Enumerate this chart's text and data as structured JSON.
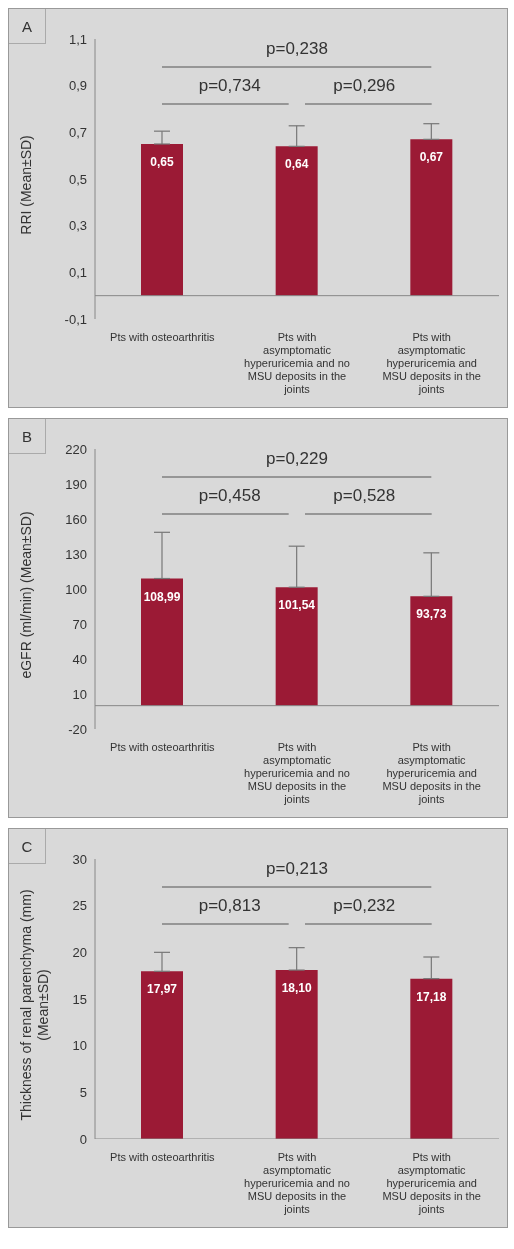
{
  "chart_data": [
    {
      "type": "bar",
      "title": "A",
      "ylabel": "RRI (Mean±SD)",
      "categories": [
        "Pts with osteoarthritis",
        "Pts with asymptomatic hyperuricemia and no MSU deposits in the joints",
        "Pts with asymptomatic hyperuricemia and MSU deposits in the joints"
      ],
      "values": [
        0.65,
        0.64,
        0.67
      ],
      "errors": [
        [
          0.65,
          0.705
        ],
        [
          0.64,
          0.728
        ],
        [
          0.67,
          0.737
        ]
      ],
      "value_labels": [
        "0,65",
        "0,64",
        "0,67"
      ],
      "color": "#9b1a35",
      "ylim": [
        -0.1,
        1.1
      ],
      "yticks": [
        {
          "value": -0.1,
          "label": "-0,1"
        },
        {
          "value": 0.1,
          "label": "0,1"
        },
        {
          "value": 0.3,
          "label": "0,3"
        },
        {
          "value": 0.5,
          "label": "0,5"
        },
        {
          "value": 0.7,
          "label": "0,7"
        },
        {
          "value": 0.9,
          "label": "0,9"
        },
        {
          "value": 1.1,
          "label": "1,1"
        }
      ],
      "grid": false,
      "annotations": [
        "p=0,238",
        "p=0,734",
        "p=0,296"
      ]
    },
    {
      "type": "bar",
      "title": "B",
      "ylabel": "eGFR (ml/min) (Mean±SD)",
      "categories": [
        "Pts with osteoarthritis",
        "Pts with asymptomatic hyperuricemia and no MSU deposits in the joints",
        "Pts with asymptomatic hyperuricemia and MSU deposits in the joints"
      ],
      "values": [
        108.99,
        101.54,
        93.73
      ],
      "errors": [
        [
          108.99,
          148.6
        ],
        [
          101.54,
          136.7
        ],
        [
          93.73,
          131
        ]
      ],
      "value_labels": [
        "108,99",
        "101,54",
        "93,73"
      ],
      "color": "#9b1a35",
      "ylim": [
        -20,
        220
      ],
      "yticks": [
        -20,
        10,
        40,
        70,
        100,
        130,
        160,
        190,
        220
      ],
      "grid": false,
      "annotations": [
        "p=0,229",
        "p=0,458",
        "p=0,528"
      ]
    },
    {
      "type": "bar",
      "title": "C",
      "ylabel": "Thickness of renal parenchyma (mm) (Mean±SD)",
      "categories": [
        "Pts with osteoarthritis",
        "Pts with asymptomatic hyperuricemia and no MSU deposits in the joints",
        "Pts with asymptomatic hyperuricemia and MSU deposits in the joints"
      ],
      "values": [
        17.97,
        18.1,
        17.18
      ],
      "errors": [
        [
          17.97,
          20
        ],
        [
          18.1,
          20.5
        ],
        [
          17.18,
          19.5
        ]
      ],
      "value_labels": [
        "17,97",
        "18,10",
        "17,18"
      ],
      "color": "#9b1a35",
      "ylim": [
        0,
        30
      ],
      "yticks": [
        0,
        5,
        10,
        15,
        20,
        25,
        30
      ],
      "grid": false,
      "annotations": [
        "p=0,213",
        "p=0,813",
        "p=0,232"
      ]
    }
  ]
}
